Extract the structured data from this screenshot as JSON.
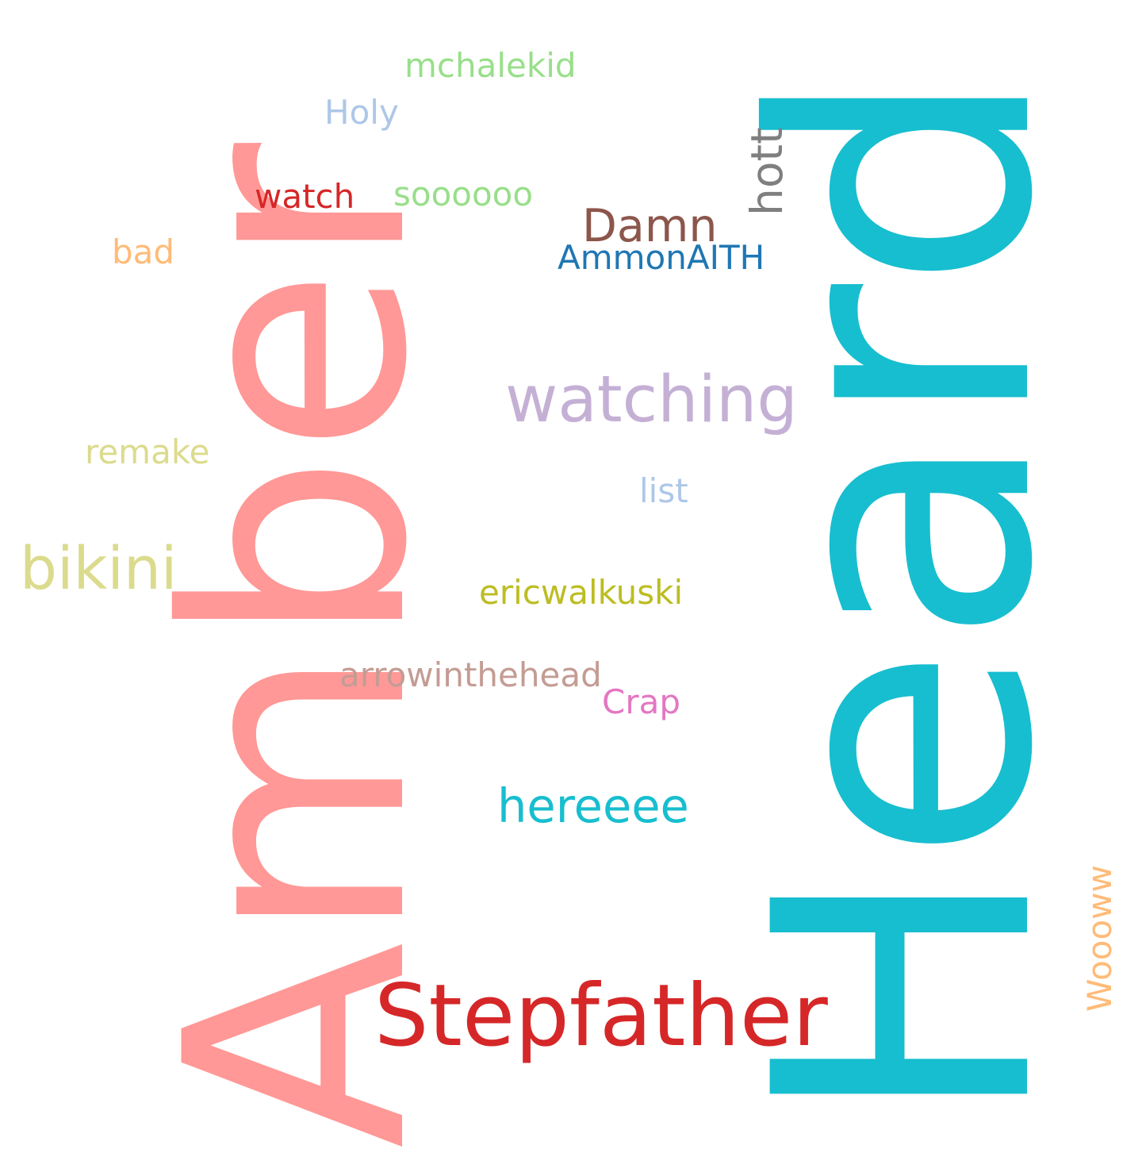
{
  "words": [
    {
      "key": "amber",
      "text": "Amber",
      "color": "#ff9896",
      "orientation": "vertical"
    },
    {
      "key": "heard",
      "text": "Heard",
      "color": "#17becf",
      "orientation": "vertical"
    },
    {
      "key": "stepfather",
      "text": "Stepfather",
      "color": "#d62728",
      "orientation": "horizontal"
    },
    {
      "key": "watching",
      "text": "watching",
      "color": "#c5b0d5",
      "orientation": "horizontal"
    },
    {
      "key": "bikini",
      "text": "bikini",
      "color": "#dbdb8d",
      "orientation": "horizontal"
    },
    {
      "key": "hereeee",
      "text": "hereeee",
      "color": "#17becf",
      "orientation": "horizontal"
    },
    {
      "key": "damn",
      "text": "Damn",
      "color": "#8c564b",
      "orientation": "horizontal"
    },
    {
      "key": "hott",
      "text": "hott",
      "color": "#7f7f7f",
      "orientation": "vertical"
    },
    {
      "key": "mchalekid",
      "text": "mchalekid",
      "color": "#98df8a",
      "orientation": "horizontal"
    },
    {
      "key": "holy",
      "text": "Holy",
      "color": "#aec7e8",
      "orientation": "horizontal"
    },
    {
      "key": "watch",
      "text": "watch",
      "color": "#d62728",
      "orientation": "horizontal"
    },
    {
      "key": "soooooo",
      "text": "soooooo",
      "color": "#98df8a",
      "orientation": "horizontal"
    },
    {
      "key": "bad",
      "text": "bad",
      "color": "#ffbb78",
      "orientation": "horizontal"
    },
    {
      "key": "ammonaith",
      "text": "AmmonAITH",
      "color": "#1f77b4",
      "orientation": "horizontal"
    },
    {
      "key": "remake",
      "text": "remake",
      "color": "#dbdb8d",
      "orientation": "horizontal"
    },
    {
      "key": "list",
      "text": "list",
      "color": "#aec7e8",
      "orientation": "horizontal"
    },
    {
      "key": "ericwalkuski",
      "text": "ericwalkuski",
      "color": "#bcbd22",
      "orientation": "horizontal"
    },
    {
      "key": "arrowinthehead",
      "text": "arrowinthehead",
      "color": "#c49c94",
      "orientation": "horizontal"
    },
    {
      "key": "crap",
      "text": "Crap",
      "color": "#e377c2",
      "orientation": "horizontal"
    },
    {
      "key": "woooww",
      "text": "Woooww",
      "color": "#ffbb78",
      "orientation": "vertical"
    }
  ]
}
